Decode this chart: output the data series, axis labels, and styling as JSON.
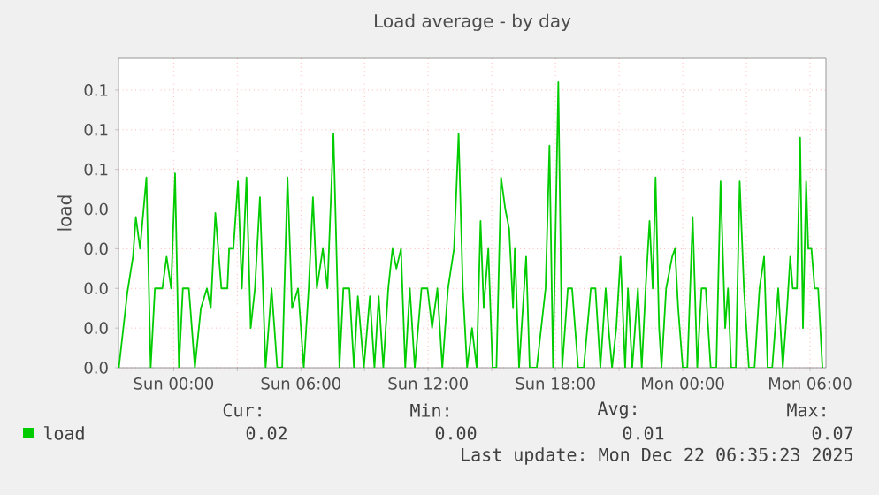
{
  "chart_data": {
    "type": "line",
    "title": "Load average - by day",
    "ylabel": "load",
    "x": [
      "2025-12-20T21:25",
      "2025-12-20T21:49",
      "2025-12-20T22:05",
      "2025-12-20T22:13",
      "2025-12-20T22:25",
      "2025-12-20T22:43",
      "2025-12-20T22:55",
      "2025-12-20T23:07",
      "2025-12-20T23:28",
      "2025-12-20T23:40",
      "2025-12-20T23:53",
      "2025-12-21T00:04",
      "2025-12-21T00:15",
      "2025-12-21T00:26",
      "2025-12-21T00:43",
      "2025-12-21T01:00",
      "2025-12-21T01:17",
      "2025-12-21T01:34",
      "2025-12-21T01:45",
      "2025-12-21T01:58",
      "2025-12-21T02:15",
      "2025-12-21T02:32",
      "2025-12-21T02:37",
      "2025-12-21T02:49",
      "2025-12-21T03:02",
      "2025-12-21T03:13",
      "2025-12-21T03:26",
      "2025-12-21T03:38",
      "2025-12-21T03:50",
      "2025-12-21T04:04",
      "2025-12-21T04:20",
      "2025-12-21T04:37",
      "2025-12-21T04:53",
      "2025-12-21T05:07",
      "2025-12-21T05:22",
      "2025-12-21T05:35",
      "2025-12-21T05:52",
      "2025-12-21T06:08",
      "2025-12-21T06:22",
      "2025-12-21T06:34",
      "2025-12-21T06:45",
      "2025-12-21T07:02",
      "2025-12-21T07:15",
      "2025-12-21T07:32",
      "2025-12-21T07:49",
      "2025-12-21T08:00",
      "2025-12-21T08:17",
      "2025-12-21T08:30",
      "2025-12-21T08:41",
      "2025-12-21T08:58",
      "2025-12-21T09:15",
      "2025-12-21T09:28",
      "2025-12-21T09:40",
      "2025-12-21T09:53",
      "2025-12-21T10:07",
      "2025-12-21T10:19",
      "2025-12-21T10:30",
      "2025-12-21T10:43",
      "2025-12-21T10:55",
      "2025-12-21T11:08",
      "2025-12-21T11:22",
      "2025-12-21T11:41",
      "2025-12-21T11:58",
      "2025-12-21T12:11",
      "2025-12-21T12:26",
      "2025-12-21T12:40",
      "2025-12-21T12:56",
      "2025-12-21T13:13",
      "2025-12-21T13:26",
      "2025-12-21T13:38",
      "2025-12-21T13:50",
      "2025-12-21T14:04",
      "2025-12-21T14:17",
      "2025-12-21T14:28",
      "2025-12-21T14:37",
      "2025-12-21T14:50",
      "2025-12-21T15:02",
      "2025-12-21T15:13",
      "2025-12-21T15:26",
      "2025-12-21T15:38",
      "2025-12-21T15:49",
      "2025-12-21T16:00",
      "2025-12-21T16:05",
      "2025-12-21T16:17",
      "2025-12-21T16:37",
      "2025-12-21T16:47",
      "2025-12-21T17:07",
      "2025-12-21T17:32",
      "2025-12-21T17:43",
      "2025-12-21T17:53",
      "2025-12-21T18:08",
      "2025-12-21T18:19",
      "2025-12-21T18:35",
      "2025-12-21T18:47",
      "2025-12-21T19:04",
      "2025-12-21T19:20",
      "2025-12-21T19:40",
      "2025-12-21T19:53",
      "2025-12-21T20:07",
      "2025-12-21T20:22",
      "2025-12-21T20:30",
      "2025-12-21T20:40",
      "2025-12-21T20:52",
      "2025-12-21T21:04",
      "2025-12-21T21:17",
      "2025-12-21T21:25",
      "2025-12-21T21:37",
      "2025-12-21T21:53",
      "2025-12-21T22:04",
      "2025-12-21T22:15",
      "2025-12-21T22:26",
      "2025-12-21T22:35",
      "2025-12-21T22:43",
      "2025-12-21T22:53",
      "2025-12-21T23:00",
      "2025-12-21T23:13",
      "2025-12-21T23:30",
      "2025-12-21T23:38",
      "2025-12-21T23:47",
      "2025-12-22T00:00",
      "2025-12-22T00:13",
      "2025-12-22T00:28",
      "2025-12-22T00:41",
      "2025-12-22T00:53",
      "2025-12-22T01:05",
      "2025-12-22T01:19",
      "2025-12-22T01:35",
      "2025-12-22T01:47",
      "2025-12-22T02:00",
      "2025-12-22T02:08",
      "2025-12-22T02:17",
      "2025-12-22T02:30",
      "2025-12-22T02:41",
      "2025-12-22T02:53",
      "2025-12-22T03:07",
      "2025-12-22T03:23",
      "2025-12-22T03:37",
      "2025-12-22T03:50",
      "2025-12-22T04:00",
      "2025-12-22T04:13",
      "2025-12-22T04:30",
      "2025-12-22T04:43",
      "2025-12-22T04:55",
      "2025-12-22T05:04",
      "2025-12-22T05:11",
      "2025-12-22T05:23",
      "2025-12-22T05:32",
      "2025-12-22T05:40",
      "2025-12-22T05:49",
      "2025-12-22T05:55",
      "2025-12-22T06:04",
      "2025-12-22T06:13",
      "2025-12-22T06:23",
      "2025-12-22T06:35"
    ],
    "series": [
      {
        "name": "load",
        "color": "#00cc00",
        "values": [
          0,
          0.019,
          0.028,
          0.038,
          0.03,
          0.048,
          0,
          0.02,
          0.02,
          0.028,
          0.02,
          0.049,
          0,
          0.02,
          0.02,
          0,
          0.015,
          0.02,
          0.015,
          0.039,
          0.02,
          0.02,
          0.03,
          0.03,
          0.047,
          0.02,
          0.048,
          0.01,
          0.02,
          0.043,
          0,
          0.02,
          0,
          0,
          0.048,
          0.015,
          0.02,
          0,
          0.02,
          0.043,
          0.02,
          0.03,
          0.02,
          0.059,
          0,
          0.02,
          0.02,
          0,
          0.018,
          0,
          0.018,
          0,
          0.018,
          0,
          0.02,
          0.03,
          0.025,
          0.03,
          0,
          0.02,
          0,
          0.02,
          0.02,
          0.01,
          0.02,
          0,
          0.02,
          0.03,
          0.059,
          0.02,
          0,
          0.01,
          0,
          0.037,
          0.015,
          0.03,
          0,
          0,
          0.048,
          0.04,
          0.035,
          0.015,
          0.03,
          0,
          0.028,
          0,
          0,
          0.02,
          0.056,
          0,
          0.072,
          0,
          0.02,
          0.02,
          0,
          0,
          0.02,
          0.02,
          0,
          0.02,
          0.01,
          0,
          0.01,
          0.028,
          0,
          0.02,
          0,
          0.02,
          0,
          0.02,
          0.037,
          0.02,
          0.048,
          0.01,
          0,
          0.02,
          0.028,
          0.03,
          0.015,
          0,
          0,
          0.038,
          0,
          0.02,
          0.02,
          0,
          0,
          0.047,
          0.01,
          0.02,
          0,
          0,
          0.047,
          0.02,
          0,
          0,
          0.02,
          0.028,
          0,
          0,
          0.02,
          0,
          0.015,
          0.028,
          0.02,
          0.02,
          0.058,
          0.01,
          0.047,
          0.03,
          0.03,
          0.02,
          0.02,
          0
        ]
      }
    ],
    "xlim": [
      "2025-12-20T21:24",
      "2025-12-22T06:45"
    ],
    "xticks": [
      {
        "value": "2025-12-21T00:00",
        "label": "Sun 00:00"
      },
      {
        "value": "2025-12-21T03:00",
        "label": null
      },
      {
        "value": "2025-12-21T06:00",
        "label": "Sun 06:00"
      },
      {
        "value": "2025-12-21T09:00",
        "label": null
      },
      {
        "value": "2025-12-21T12:00",
        "label": "Sun 12:00"
      },
      {
        "value": "2025-12-21T15:00",
        "label": null
      },
      {
        "value": "2025-12-21T18:00",
        "label": "Sun 18:00"
      },
      {
        "value": "2025-12-21T21:00",
        "label": null
      },
      {
        "value": "2025-12-22T00:00",
        "label": "Mon 00:00"
      },
      {
        "value": "2025-12-22T03:00",
        "label": null
      },
      {
        "value": "2025-12-22T06:00",
        "label": "Mon 06:00"
      }
    ],
    "ylim": [
      0,
      0.078
    ],
    "yticks": [
      {
        "value": 0,
        "label": "0.0"
      },
      {
        "value": 0.01,
        "label": "0.0"
      },
      {
        "value": 0.02,
        "label": "0.0"
      },
      {
        "value": 0.03,
        "label": "0.0"
      },
      {
        "value": 0.04,
        "label": "0.0"
      },
      {
        "value": 0.05,
        "label": "0.1"
      },
      {
        "value": 0.06,
        "label": "0.1"
      },
      {
        "value": 0.07,
        "label": "0.1"
      }
    ],
    "grid": true,
    "legend": "bottom left",
    "marker": "none",
    "line_style": "solid",
    "annotations": [
      "Cur:",
      "Min:",
      "Avg:",
      "Max:",
      "0.02",
      "0.00",
      "0.01",
      "0.07",
      "Last update: Mon Dec 22 06:35:23 2025"
    ]
  }
}
